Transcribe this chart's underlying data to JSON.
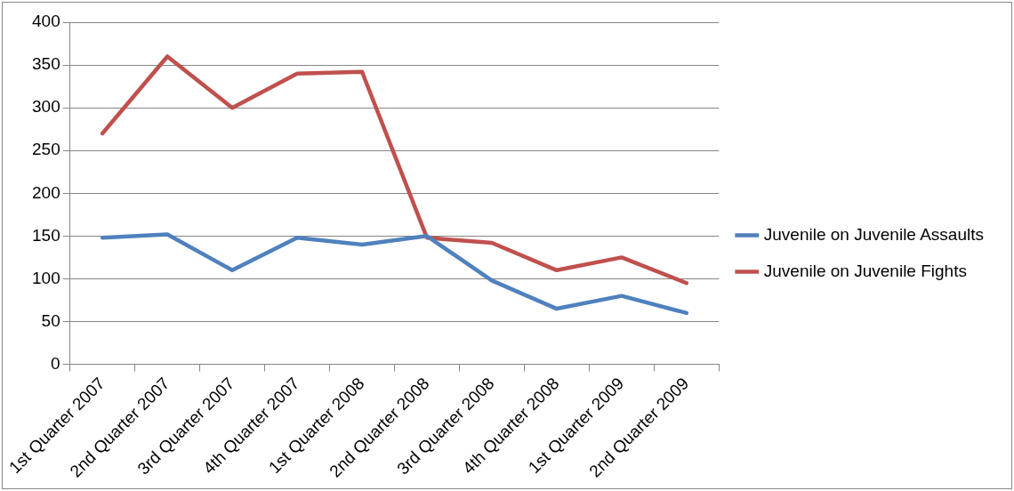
{
  "chart_data": {
    "type": "line",
    "categories": [
      "1st Quarter 2007",
      "2nd Quarter 2007",
      "3rd Quarter 2007",
      "4th Quarter 2007",
      "1st Quarter 2008",
      "2nd Quarter 2008",
      "3rd Quarter 2008",
      "4th Quarter 2008",
      "1st Quarter 2009",
      "2nd Quarter 2009"
    ],
    "series": [
      {
        "name": "Juvenile on Juvenile Assaults",
        "color": "#4f81bd",
        "values": [
          148,
          152,
          110,
          148,
          140,
          150,
          98,
          65,
          80,
          60
        ]
      },
      {
        "name": "Juvenile on Juvenile Fights",
        "color": "#c0504d",
        "values": [
          270,
          360,
          300,
          340,
          342,
          148,
          142,
          110,
          125,
          95
        ]
      }
    ],
    "ylim": [
      0,
      400
    ],
    "yticks": [
      0,
      50,
      100,
      150,
      200,
      250,
      300,
      350,
      400
    ],
    "grid": "y",
    "legend": "right",
    "marker": "none",
    "line_style": "solid"
  }
}
